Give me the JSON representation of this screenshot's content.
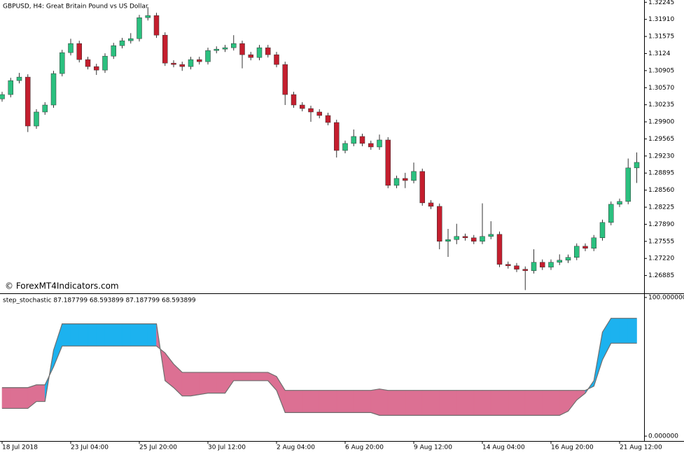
{
  "chart_data": [
    {
      "type": "candlestick",
      "title": "GBPUSD, H4:  Great Britain Pound vs US Dollar",
      "watermark": "© ForexMT4Indicators.com",
      "up_color": "#2bc07f",
      "down_color": "#c41e2e",
      "wick_color": "#333333",
      "ylim": [
        1.2655,
        1.3229
      ],
      "yticks": [
        1.32245,
        {
          "value": 1.3191,
          "label": "1.31910"
        },
        1.31575,
        1.3124,
        1.30905,
        {
          "value": 1.3057,
          "label": "1.30570"
        },
        1.30235,
        {
          "value": 1.299,
          "label": "1.29900"
        },
        1.29565,
        {
          "value": 1.2923,
          "label": "1.29230"
        },
        1.28895,
        {
          "value": 1.2856,
          "label": "1.28560"
        },
        1.28225,
        {
          "value": 1.2789,
          "label": "1.27890"
        },
        1.27555,
        {
          "value": 1.2722,
          "label": "1.27220"
        },
        1.26885
      ],
      "categories": [
        "18 Jul 2018",
        null,
        null,
        null,
        null,
        null,
        null,
        null,
        "23 Jul 04:00",
        null,
        null,
        null,
        null,
        null,
        null,
        null,
        "25 Jul 20:00",
        null,
        null,
        null,
        null,
        null,
        null,
        null,
        "30 Jul 12:00",
        null,
        null,
        null,
        null,
        null,
        null,
        null,
        "2 Aug 04:00",
        null,
        null,
        null,
        null,
        null,
        null,
        null,
        "6 Aug 20:00",
        null,
        null,
        null,
        null,
        null,
        null,
        null,
        "9 Aug 12:00",
        null,
        null,
        null,
        null,
        null,
        null,
        null,
        "14 Aug 04:00",
        null,
        null,
        null,
        null,
        null,
        null,
        null,
        "16 Aug 20:00",
        null,
        null,
        null,
        null,
        null,
        null,
        null,
        "21 Aug 12:00",
        null,
        null
      ],
      "open": [
        1.3035,
        1.30435,
        1.30709,
        1.30778,
        1.29818,
        1.30093,
        1.3023,
        1.30847,
        1.31258,
        1.31436,
        1.31121,
        1.30984,
        1.30915,
        1.31189,
        1.31395,
        1.31491,
        1.31532,
        1.31943,
        1.31985,
        1.31601,
        1.31052,
        1.31025,
        1.30984,
        1.31121,
        1.3108,
        1.31299,
        1.31326,
        1.31354,
        1.31436,
        1.31217,
        1.31162,
        1.31354,
        1.31217,
        1.31025,
        1.30435,
        1.3023,
        1.30161,
        1.30093,
        1.30024,
        1.29887,
        1.29338,
        1.29476,
        1.29613,
        1.29476,
        1.29407,
        1.29544,
        1.28653,
        1.2879,
        1.28749,
        1.28927,
        1.2831,
        1.28242,
        1.27556,
        1.2759,
        1.27652,
        1.27625,
        1.27556,
        1.27652,
        1.27693,
        1.27104,
        1.27076,
        1.27008,
        1.2698,
        1.27145,
        1.27049,
        1.27145,
        1.27186,
        1.27241,
        1.2746,
        1.27419,
        1.27625,
        1.27926,
        1.28283,
        1.28338,
        1.28996
      ],
      "high": [
        1.3049,
        1.30764,
        1.3086,
        1.30833,
        1.30148,
        1.30285,
        1.30902,
        1.31313,
        1.3153,
        1.31491,
        1.31176,
        1.31039,
        1.31244,
        1.3145,
        1.31546,
        1.3164,
        1.31998,
        1.3215,
        1.3204,
        1.31656,
        1.31107,
        1.3108,
        1.31176,
        1.31176,
        1.31354,
        1.31381,
        1.31409,
        1.316,
        1.31491,
        1.31272,
        1.31409,
        1.31409,
        1.31272,
        1.3108,
        1.3049,
        1.30285,
        1.30216,
        1.30148,
        1.30079,
        1.29942,
        1.29531,
        1.2975,
        1.29668,
        1.29531,
        1.2965,
        1.29599,
        1.28845,
        1.289,
        1.291,
        1.28982,
        1.28365,
        1.28297,
        1.278,
        1.279,
        1.27707,
        1.2768,
        1.283,
        1.2795,
        1.27748,
        1.27159,
        1.27131,
        1.27063,
        1.274,
        1.272,
        1.272,
        1.273,
        1.27296,
        1.27515,
        1.27515,
        1.2768,
        1.27981,
        1.28338,
        1.28393,
        1.2918,
        1.293
      ],
      "low": [
        1.30295,
        1.3038,
        1.30654,
        1.297,
        1.29763,
        1.30038,
        1.30175,
        1.30792,
        1.31203,
        1.31066,
        1.30929,
        1.3082,
        1.3086,
        1.31134,
        1.3134,
        1.31436,
        1.31477,
        1.31888,
        1.31546,
        1.30997,
        1.3097,
        1.309,
        1.30929,
        1.31025,
        1.31025,
        1.31244,
        1.31271,
        1.31299,
        1.3095,
        1.31107,
        1.31107,
        1.31162,
        1.3097,
        1.3023,
        1.30175,
        1.30106,
        1.299,
        1.29969,
        1.29832,
        1.292,
        1.29283,
        1.29421,
        1.29421,
        1.29352,
        1.29352,
        1.28598,
        1.28598,
        1.286,
        1.28694,
        1.28255,
        1.28187,
        1.274,
        1.2725,
        1.275,
        1.2757,
        1.27501,
        1.27501,
        1.27597,
        1.27049,
        1.27021,
        1.26953,
        1.266,
        1.26925,
        1.26994,
        1.26994,
        1.2709,
        1.27131,
        1.27186,
        1.27364,
        1.27364,
        1.2757,
        1.27871,
        1.28228,
        1.28283,
        1.287
      ],
      "close": [
        1.30435,
        1.30709,
        1.30778,
        1.29818,
        1.30093,
        1.3023,
        1.30847,
        1.31258,
        1.31436,
        1.31121,
        1.30984,
        1.30915,
        1.31189,
        1.31395,
        1.31491,
        1.31532,
        1.31943,
        1.31985,
        1.31601,
        1.31052,
        1.31025,
        1.30984,
        1.31121,
        1.3108,
        1.31299,
        1.31326,
        1.31354,
        1.31436,
        1.31217,
        1.31162,
        1.31354,
        1.31217,
        1.31025,
        1.30435,
        1.3023,
        1.30161,
        1.30093,
        1.30024,
        1.29887,
        1.29338,
        1.29476,
        1.29613,
        1.29476,
        1.29407,
        1.29544,
        1.28653,
        1.2879,
        1.28749,
        1.28927,
        1.2831,
        1.28242,
        1.27556,
        1.2759,
        1.27652,
        1.27625,
        1.27556,
        1.27652,
        1.27693,
        1.27104,
        1.27076,
        1.27008,
        1.2698,
        1.27145,
        1.27049,
        1.27145,
        1.27186,
        1.27241,
        1.2746,
        1.27419,
        1.27625,
        1.27926,
        1.28283,
        1.28338,
        1.28996,
        1.29105
      ]
    },
    {
      "type": "band",
      "title": "step_stochastic 87.187799 68.593899 87.187799 68.593899",
      "up_color": "#1cb2ef",
      "down_color": "#dc7093",
      "ylim": [
        -3.5,
        102.5
      ],
      "yticks": [
        {
          "value": 100,
          "label": "100.000000"
        },
        {
          "value": 0,
          "label": "0.000000"
        }
      ],
      "series": [
        {
          "color": "#6e6e6e",
          "values": [
            20,
            20,
            20,
            20,
            25,
            25,
            62,
            81,
            81,
            81,
            81,
            81,
            81,
            81,
            81,
            81,
            81,
            81,
            81,
            40,
            35,
            29,
            29,
            30,
            31,
            31,
            31,
            40,
            40,
            40,
            40,
            40,
            33,
            17,
            17,
            17,
            17,
            17,
            17,
            17,
            17,
            17,
            17,
            17,
            15,
            15,
            15,
            15,
            15,
            15,
            15,
            15,
            15,
            15,
            15,
            15,
            15,
            15,
            15,
            15,
            15,
            15,
            15,
            15,
            15,
            15,
            18,
            26,
            31,
            40,
            75,
            85,
            85,
            85,
            85
          ]
        },
        {
          "color": "#6e6e6e",
          "values": [
            35,
            35,
            35,
            35,
            37,
            37,
            50,
            65,
            65,
            65,
            65,
            65,
            65,
            65,
            65,
            65,
            65,
            65,
            65,
            60,
            52,
            46,
            46,
            46,
            46,
            46,
            46,
            46,
            46,
            46,
            46,
            46,
            43,
            33,
            33,
            33,
            33,
            33,
            33,
            33,
            33,
            33,
            33,
            33,
            34,
            33,
            33,
            33,
            33,
            33,
            33,
            33,
            33,
            33,
            33,
            33,
            33,
            33,
            33,
            33,
            33,
            33,
            33,
            33,
            33,
            33,
            33,
            33,
            33,
            36,
            55,
            67,
            67,
            67,
            67
          ]
        }
      ]
    }
  ]
}
